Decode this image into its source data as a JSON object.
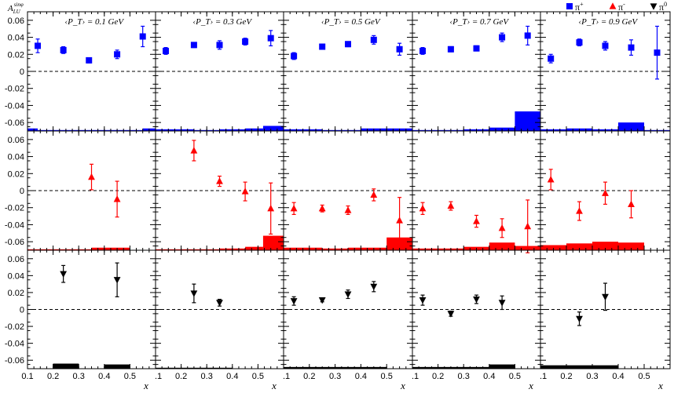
{
  "chart_data": {
    "type": "scatter",
    "ylabel": "A_LU^{sinφ}",
    "xlabel": "x",
    "ylim": [
      -0.07,
      0.07
    ],
    "xlim": [
      0.1,
      0.6
    ],
    "yticks": [
      "0.06",
      "0.04",
      "0.02",
      "0",
      "-0.02",
      "-0.04",
      "-0.06"
    ],
    "xtick_labels_first": [
      "0.1",
      "0.2",
      "0.3",
      "0.4",
      "0.5"
    ],
    "xtick_labels_other": [
      ".1",
      "0.2",
      "0.3",
      "0.4",
      "0.5"
    ],
    "xtick_values": [
      0.1,
      0.2,
      0.3,
      0.4,
      0.5
    ],
    "columns": [
      "‹P_T› = 0.1 GeV",
      "‹P_T› = 0.3 GeV",
      "‹P_T› = 0.5 GeV",
      "‹P_T› = 0.7 GeV",
      "‹P_T› = 0.9 GeV"
    ],
    "legend": [
      {
        "label": "π+",
        "color": "#0000ff",
        "marker": "square"
      },
      {
        "label": "π-",
        "color": "#ff0000",
        "marker": "triangle-up"
      },
      {
        "label": "π0",
        "color": "#000000",
        "marker": "triangle-down"
      }
    ],
    "panels": [
      {
        "row": "π+",
        "col": 0,
        "points": [
          [
            0.14,
            0.03,
            0.008
          ],
          [
            0.24,
            0.025,
            0.004
          ],
          [
            0.34,
            0.013,
            0.003
          ],
          [
            0.45,
            0.02,
            0.005
          ],
          [
            0.55,
            0.041,
            0.012
          ]
        ],
        "sys": [
          [
            0.1,
            0.14,
            0.003
          ],
          [
            0.14,
            0.35,
            0.001
          ],
          [
            0.35,
            0.45,
            0.001
          ],
          [
            0.45,
            0.55,
            0.001
          ],
          [
            0.55,
            0.6,
            0.003
          ]
        ]
      },
      {
        "row": "π+",
        "col": 1,
        "points": [
          [
            0.14,
            0.024,
            0.004
          ],
          [
            0.25,
            0.031,
            0.003
          ],
          [
            0.35,
            0.031,
            0.005
          ],
          [
            0.45,
            0.035,
            0.004
          ],
          [
            0.55,
            0.039,
            0.009
          ]
        ],
        "sys": [
          [
            0.1,
            0.25,
            0.002
          ],
          [
            0.25,
            0.35,
            0.001
          ],
          [
            0.35,
            0.45,
            0.002
          ],
          [
            0.45,
            0.52,
            0.003
          ],
          [
            0.52,
            0.6,
            0.006
          ]
        ]
      },
      {
        "row": "π+",
        "col": 2,
        "points": [
          [
            0.14,
            0.018,
            0.004
          ],
          [
            0.25,
            0.029,
            0.003
          ],
          [
            0.35,
            0.032,
            0.003
          ],
          [
            0.45,
            0.037,
            0.005
          ],
          [
            0.55,
            0.026,
            0.007
          ]
        ],
        "sys": [
          [
            0.1,
            0.25,
            0.002
          ],
          [
            0.25,
            0.4,
            0.001
          ],
          [
            0.4,
            0.6,
            0.003
          ]
        ]
      },
      {
        "row": "π+",
        "col": 3,
        "points": [
          [
            0.14,
            0.024,
            0.004
          ],
          [
            0.25,
            0.026,
            0.003
          ],
          [
            0.35,
            0.027,
            0.003
          ],
          [
            0.45,
            0.04,
            0.005
          ],
          [
            0.55,
            0.042,
            0.011
          ]
        ],
        "sys": [
          [
            0.1,
            0.3,
            0.001
          ],
          [
            0.3,
            0.4,
            0.002
          ],
          [
            0.4,
            0.5,
            0.004
          ],
          [
            0.5,
            0.6,
            0.023
          ]
        ]
      },
      {
        "row": "π+",
        "col": 4,
        "points": [
          [
            0.14,
            0.015,
            0.005
          ],
          [
            0.25,
            0.034,
            0.004
          ],
          [
            0.35,
            0.03,
            0.005
          ],
          [
            0.45,
            0.028,
            0.009
          ],
          [
            0.55,
            0.022,
            0.031
          ]
        ],
        "sys": [
          [
            0.1,
            0.2,
            0.002
          ],
          [
            0.2,
            0.3,
            0.003
          ],
          [
            0.3,
            0.4,
            0.002
          ],
          [
            0.4,
            0.5,
            0.01
          ],
          [
            0.5,
            0.6,
            0.001
          ]
        ]
      },
      {
        "row": "π-",
        "col": 0,
        "points": [
          [
            0.35,
            0.016,
            0.015
          ],
          [
            0.45,
            -0.01,
            0.021
          ]
        ],
        "sys": [
          [
            0.1,
            0.25,
            0.0
          ],
          [
            0.25,
            0.35,
            0.0
          ],
          [
            0.35,
            0.5,
            0.003
          ]
        ]
      },
      {
        "row": "π-",
        "col": 1,
        "points": [
          [
            0.25,
            0.047,
            0.012
          ],
          [
            0.35,
            0.011,
            0.006
          ],
          [
            0.45,
            -0.001,
            0.011
          ],
          [
            0.55,
            -0.021,
            0.03
          ]
        ],
        "sys": [
          [
            0.1,
            0.25,
            0.001
          ],
          [
            0.25,
            0.35,
            0.001
          ],
          [
            0.35,
            0.45,
            0.002
          ],
          [
            0.45,
            0.52,
            0.004
          ],
          [
            0.52,
            0.6,
            0.017
          ]
        ]
      },
      {
        "row": "π-",
        "col": 2,
        "points": [
          [
            0.14,
            -0.021,
            0.007
          ],
          [
            0.25,
            -0.021,
            0.004
          ],
          [
            0.35,
            -0.023,
            0.005
          ],
          [
            0.45,
            -0.005,
            0.007
          ],
          [
            0.55,
            -0.035,
            0.027
          ]
        ],
        "sys": [
          [
            0.1,
            0.25,
            0.003
          ],
          [
            0.25,
            0.35,
            0.002
          ],
          [
            0.35,
            0.45,
            0.003
          ],
          [
            0.45,
            0.5,
            0.003
          ],
          [
            0.5,
            0.6,
            0.015
          ]
        ]
      },
      {
        "row": "π-",
        "col": 3,
        "points": [
          [
            0.14,
            -0.021,
            0.007
          ],
          [
            0.25,
            -0.018,
            0.005
          ],
          [
            0.35,
            -0.036,
            0.007
          ],
          [
            0.45,
            -0.044,
            0.011
          ],
          [
            0.55,
            -0.042,
            0.031
          ]
        ],
        "sys": [
          [
            0.1,
            0.3,
            0.002
          ],
          [
            0.3,
            0.4,
            0.004
          ],
          [
            0.4,
            0.5,
            0.009
          ],
          [
            0.5,
            0.6,
            0.005
          ]
        ]
      },
      {
        "row": "π-",
        "col": 4,
        "points": [
          [
            0.14,
            0.013,
            0.012
          ],
          [
            0.25,
            -0.024,
            0.011
          ],
          [
            0.35,
            -0.003,
            0.013
          ],
          [
            0.45,
            -0.016,
            0.016
          ]
        ],
        "sys": [
          [
            0.1,
            0.2,
            0.006
          ],
          [
            0.2,
            0.3,
            0.008
          ],
          [
            0.3,
            0.4,
            0.01
          ],
          [
            0.4,
            0.5,
            0.009
          ]
        ]
      },
      {
        "row": "π0",
        "col": 0,
        "points": [
          [
            0.24,
            0.042,
            0.01
          ],
          [
            0.45,
            0.035,
            0.02
          ]
        ],
        "sys": [
          [
            0.2,
            0.3,
            0.006
          ],
          [
            0.4,
            0.5,
            0.005
          ]
        ]
      },
      {
        "row": "π0",
        "col": 1,
        "points": [
          [
            0.25,
            0.019,
            0.011
          ],
          [
            0.35,
            0.008,
            0.004
          ]
        ],
        "sys": [
          [
            0.1,
            0.3,
            0.001
          ],
          [
            0.3,
            0.4,
            0.001
          ]
        ]
      },
      {
        "row": "π0",
        "col": 2,
        "points": [
          [
            0.14,
            0.01,
            0.005
          ],
          [
            0.25,
            0.011,
            0.002
          ],
          [
            0.35,
            0.018,
            0.005
          ],
          [
            0.45,
            0.027,
            0.006
          ]
        ],
        "sys": [
          [
            0.1,
            0.3,
            0.002
          ],
          [
            0.3,
            0.5,
            0.002
          ]
        ]
      },
      {
        "row": "π0",
        "col": 3,
        "points": [
          [
            0.14,
            0.011,
            0.006
          ],
          [
            0.25,
            -0.005,
            0.003
          ],
          [
            0.35,
            0.012,
            0.005
          ],
          [
            0.45,
            0.008,
            0.008
          ]
        ],
        "sys": [
          [
            0.1,
            0.4,
            0.002
          ],
          [
            0.4,
            0.5,
            0.005
          ]
        ]
      },
      {
        "row": "π0",
        "col": 4,
        "points": [
          [
            0.25,
            -0.011,
            0.008
          ],
          [
            0.35,
            0.015,
            0.016
          ]
        ],
        "sys": [
          [
            0.1,
            0.4,
            0.004
          ]
        ]
      }
    ]
  }
}
